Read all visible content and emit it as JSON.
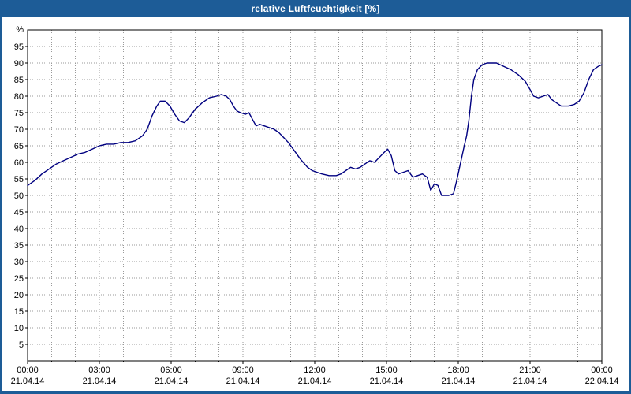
{
  "window": {
    "title": "relative Luftfeuchtigkeit [%]"
  },
  "colors": {
    "titlebar_bg": "#1d5c97",
    "titlebar_text": "#ffffff",
    "border": "#1d5c97",
    "plot_bg": "#ffffff",
    "grid": "#9a9a9a",
    "axis": "#000000",
    "line": "#000080",
    "tick_text": "#000000"
  },
  "chart_data": {
    "type": "line",
    "title": "relative Luftfeuchtigkeit [%]",
    "ylabel": "%",
    "xlabel": "",
    "ylim": [
      0,
      100
    ],
    "yticks": [
      5,
      10,
      15,
      20,
      25,
      30,
      35,
      40,
      45,
      50,
      55,
      60,
      65,
      70,
      75,
      80,
      85,
      90,
      95
    ],
    "xlim_hours": [
      0,
      24
    ],
    "x_minor_step_hours": 1,
    "grid": true,
    "legend": "none",
    "x_major_ticks": [
      {
        "hour": 0,
        "time": "00:00",
        "date": "21.04.14"
      },
      {
        "hour": 3,
        "time": "03:00",
        "date": "21.04.14"
      },
      {
        "hour": 6,
        "time": "06:00",
        "date": "21.04.14"
      },
      {
        "hour": 9,
        "time": "09:00",
        "date": "21.04.14"
      },
      {
        "hour": 12,
        "time": "12:00",
        "date": "21.04.14"
      },
      {
        "hour": 15,
        "time": "15:00",
        "date": "21.04.14"
      },
      {
        "hour": 18,
        "time": "18:00",
        "date": "21.04.14"
      },
      {
        "hour": 21,
        "time": "21:00",
        "date": "21.04.14"
      },
      {
        "hour": 24,
        "time": "00:00",
        "date": "22.04.14"
      }
    ],
    "series": [
      {
        "name": "relative Luftfeuchtigkeit [%]",
        "color": "#000080",
        "points": [
          [
            0,
            53
          ],
          [
            0.3,
            54.5
          ],
          [
            0.6,
            56.5
          ],
          [
            0.9,
            58
          ],
          [
            1.2,
            59.5
          ],
          [
            1.5,
            60.5
          ],
          [
            1.8,
            61.5
          ],
          [
            2.1,
            62.5
          ],
          [
            2.4,
            63
          ],
          [
            2.7,
            64
          ],
          [
            3,
            65
          ],
          [
            3.3,
            65.5
          ],
          [
            3.6,
            65.5
          ],
          [
            3.9,
            66
          ],
          [
            4.2,
            66
          ],
          [
            4.5,
            66.5
          ],
          [
            4.8,
            68
          ],
          [
            5,
            70
          ],
          [
            5.2,
            74
          ],
          [
            5.4,
            77
          ],
          [
            5.55,
            78.5
          ],
          [
            5.75,
            78.5
          ],
          [
            5.95,
            77
          ],
          [
            6.15,
            74.5
          ],
          [
            6.35,
            72.5
          ],
          [
            6.55,
            72
          ],
          [
            6.75,
            73.5
          ],
          [
            7,
            76
          ],
          [
            7.3,
            78
          ],
          [
            7.6,
            79.5
          ],
          [
            7.9,
            80
          ],
          [
            8.1,
            80.5
          ],
          [
            8.3,
            80
          ],
          [
            8.45,
            79
          ],
          [
            8.6,
            77
          ],
          [
            8.75,
            75.5
          ],
          [
            8.9,
            75
          ],
          [
            9.1,
            74.5
          ],
          [
            9.25,
            75
          ],
          [
            9.4,
            73
          ],
          [
            9.55,
            71
          ],
          [
            9.7,
            71.5
          ],
          [
            9.9,
            71
          ],
          [
            10.1,
            70.5
          ],
          [
            10.3,
            70
          ],
          [
            10.5,
            69
          ],
          [
            10.7,
            67.5
          ],
          [
            10.9,
            66
          ],
          [
            11.1,
            64
          ],
          [
            11.4,
            61
          ],
          [
            11.7,
            58.5
          ],
          [
            11.9,
            57.5
          ],
          [
            12.1,
            57
          ],
          [
            12.3,
            56.5
          ],
          [
            12.6,
            56
          ],
          [
            12.9,
            56
          ],
          [
            13.1,
            56.5
          ],
          [
            13.3,
            57.5
          ],
          [
            13.5,
            58.5
          ],
          [
            13.7,
            58
          ],
          [
            13.9,
            58.5
          ],
          [
            14.1,
            59.5
          ],
          [
            14.3,
            60.5
          ],
          [
            14.5,
            60
          ],
          [
            14.7,
            61.5
          ],
          [
            14.9,
            63
          ],
          [
            15.05,
            64
          ],
          [
            15.2,
            62
          ],
          [
            15.35,
            57.5
          ],
          [
            15.5,
            56.5
          ],
          [
            15.7,
            57
          ],
          [
            15.9,
            57.5
          ],
          [
            16.1,
            55.5
          ],
          [
            16.3,
            56
          ],
          [
            16.5,
            56.5
          ],
          [
            16.7,
            55.5
          ],
          [
            16.85,
            51.5
          ],
          [
            17,
            53.5
          ],
          [
            17.15,
            53
          ],
          [
            17.3,
            50
          ],
          [
            17.6,
            50
          ],
          [
            17.8,
            50.5
          ],
          [
            17.95,
            55
          ],
          [
            18.1,
            60
          ],
          [
            18.25,
            65
          ],
          [
            18.35,
            68
          ],
          [
            18.45,
            73
          ],
          [
            18.55,
            80
          ],
          [
            18.65,
            85
          ],
          [
            18.8,
            88
          ],
          [
            19,
            89.5
          ],
          [
            19.2,
            90
          ],
          [
            19.6,
            90
          ],
          [
            19.9,
            89
          ],
          [
            20.2,
            88
          ],
          [
            20.5,
            86.5
          ],
          [
            20.8,
            84.5
          ],
          [
            21,
            82
          ],
          [
            21.15,
            80
          ],
          [
            21.35,
            79.5
          ],
          [
            21.55,
            80
          ],
          [
            21.75,
            80.5
          ],
          [
            21.9,
            79
          ],
          [
            22.1,
            78
          ],
          [
            22.3,
            77
          ],
          [
            22.6,
            77
          ],
          [
            22.85,
            77.5
          ],
          [
            23.05,
            78.5
          ],
          [
            23.25,
            81
          ],
          [
            23.45,
            85
          ],
          [
            23.65,
            88
          ],
          [
            23.85,
            89
          ],
          [
            24,
            89.5
          ]
        ]
      }
    ]
  }
}
